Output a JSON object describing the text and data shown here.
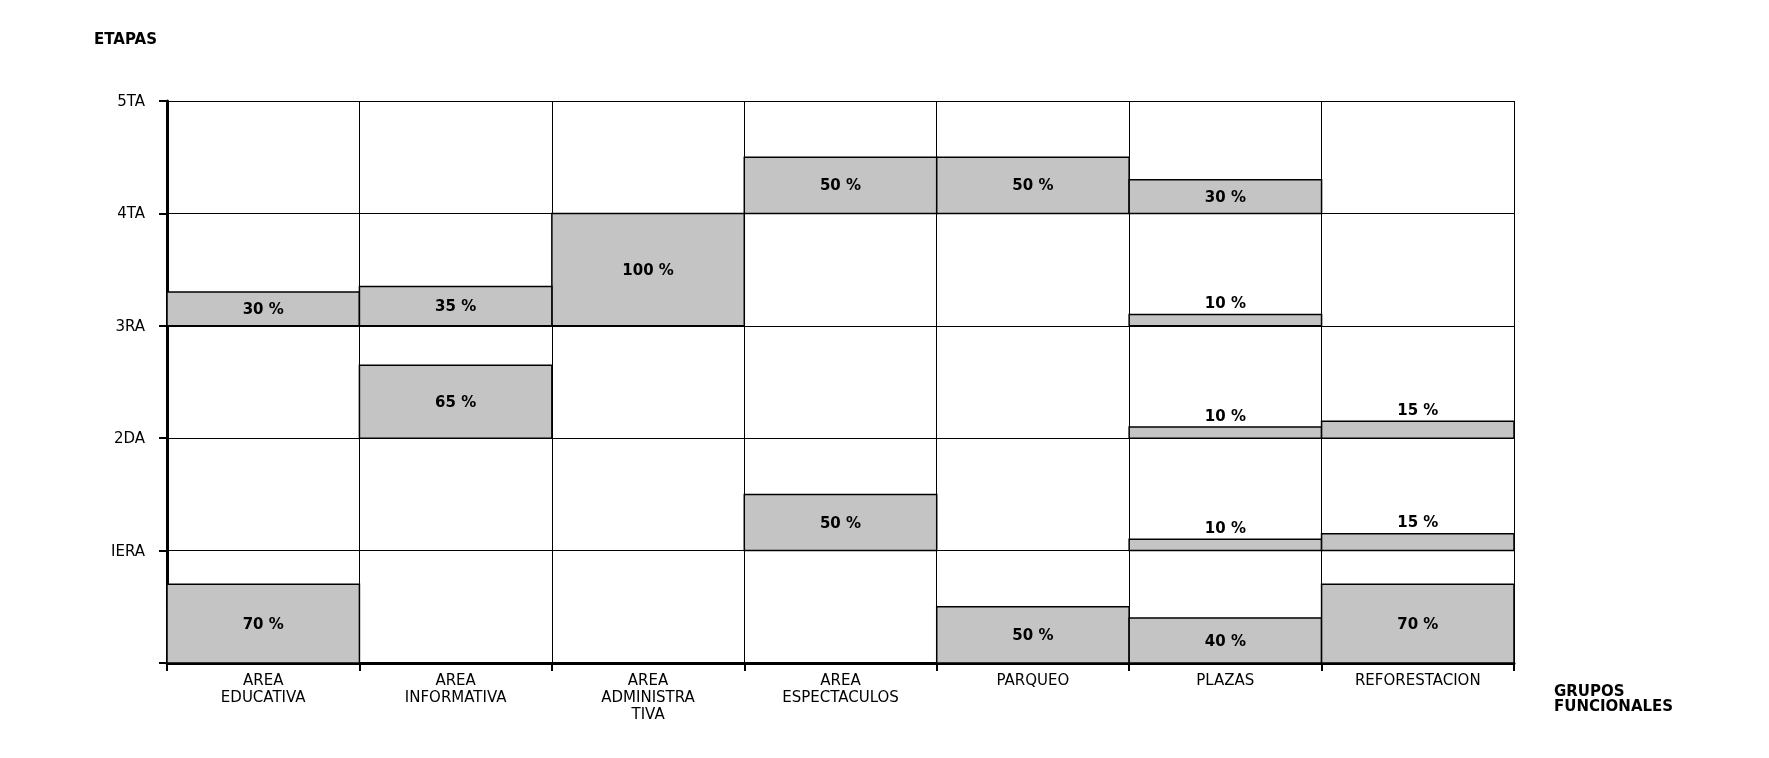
{
  "chart_data": {
    "type": "bar",
    "xlabel": "GRUPOS\nFUNCIONALES",
    "ylabel": "ETAPAS",
    "categories": [
      "AREA\nEDUCATIVA",
      "AREA\nINFORMATIVA",
      "AREA\nADMINISTRA\nTIVA",
      "AREA\nESPECTACULOS",
      "PARQUEO",
      "PLAZAS",
      "REFORESTACION"
    ],
    "series": [
      {
        "color": "#c4c4c4",
        "base": [
          0,
          2,
          3,
          1,
          0,
          0,
          0
        ],
        "values": [
          0.7,
          0.65,
          1.0,
          0.5,
          0.5,
          0.4,
          0.7
        ],
        "value_labels": [
          "70 %",
          "65 %",
          "100 %",
          "50 %",
          "50 %",
          "40 %",
          "70 %"
        ]
      },
      {
        "color": "#c4c4c4",
        "base": [
          3,
          3,
          null,
          4,
          4,
          1,
          1
        ],
        "values": [
          0.3,
          0.35,
          null,
          0.5,
          0.5,
          0.1,
          0.15
        ],
        "value_labels": [
          "30 %",
          "35 %",
          null,
          "50 %",
          "50 %",
          "10 %",
          "15 %"
        ]
      },
      {
        "color": "#c4c4c4",
        "base": [
          null,
          null,
          null,
          null,
          null,
          2,
          2
        ],
        "values": [
          null,
          null,
          null,
          null,
          null,
          0.1,
          0.15
        ],
        "value_labels": [
          null,
          null,
          null,
          null,
          null,
          "10 %",
          "15 %"
        ]
      },
      {
        "color": "#c4c4c4",
        "base": [
          null,
          null,
          null,
          null,
          null,
          3,
          null
        ],
        "values": [
          null,
          null,
          null,
          null,
          null,
          0.1,
          null
        ],
        "value_labels": [
          null,
          null,
          null,
          null,
          null,
          "10 %",
          null
        ]
      },
      {
        "color": "#c4c4c4",
        "base": [
          null,
          null,
          null,
          null,
          null,
          4,
          null
        ],
        "values": [
          null,
          null,
          null,
          null,
          null,
          0.3,
          null
        ],
        "value_labels": [
          null,
          null,
          null,
          null,
          null,
          "30 %",
          null
        ]
      }
    ],
    "ylim": [
      0,
      5
    ],
    "yticks": [
      {
        "value": 0,
        "label": null
      },
      {
        "value": 1,
        "label": "IERA"
      },
      {
        "value": 2,
        "label": "2DA"
      },
      {
        "value": 3,
        "label": "3RA"
      },
      {
        "value": 4,
        "label": "4TA"
      },
      {
        "value": 5,
        "label": "5TA"
      }
    ],
    "grid": true
  }
}
